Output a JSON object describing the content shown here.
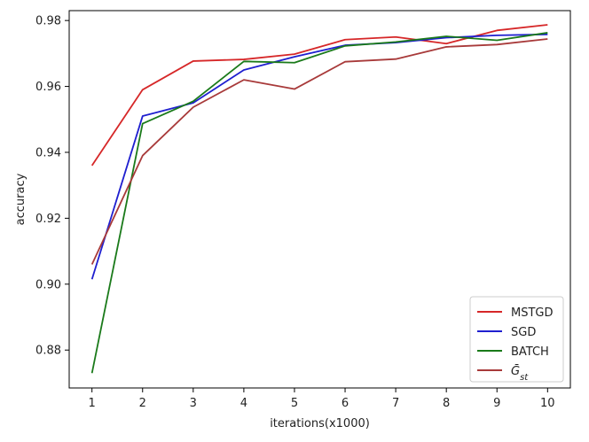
{
  "chart_data": {
    "type": "line",
    "xlabel": "iterations(x1000)",
    "ylabel": "accuracy",
    "x": [
      1,
      2,
      3,
      4,
      5,
      6,
      7,
      8,
      9,
      10
    ],
    "xticks": [
      "1",
      "2",
      "3",
      "4",
      "5",
      "6",
      "7",
      "8",
      "9",
      "10"
    ],
    "yticks": [
      "0.88",
      "0.90",
      "0.92",
      "0.94",
      "0.96",
      "0.98"
    ],
    "ytick_values": [
      0.88,
      0.9,
      0.92,
      0.94,
      0.96,
      0.98
    ],
    "xlim": [
      0.55,
      10.45
    ],
    "ylim": [
      0.8685,
      0.983
    ],
    "grid": false,
    "legend_position": "lower-right",
    "series": [
      {
        "name": "MSTGD",
        "color": "#d62728",
        "values": [
          0.936,
          0.959,
          0.9677,
          0.9682,
          0.9698,
          0.9742,
          0.975,
          0.973,
          0.977,
          0.9787
        ]
      },
      {
        "name": "SGD",
        "color": "#1f1fcf",
        "values": [
          0.9015,
          0.951,
          0.955,
          0.965,
          0.969,
          0.9725,
          0.9733,
          0.9748,
          0.9755,
          0.9758
        ]
      },
      {
        "name": "BATCH",
        "color": "#1a7a1a",
        "values": [
          0.873,
          0.9487,
          0.9555,
          0.9676,
          0.9672,
          0.9723,
          0.9735,
          0.9752,
          0.974,
          0.9763
        ]
      },
      {
        "name": "Ḡ_st",
        "color": "#a83a3a",
        "values": [
          0.906,
          0.939,
          0.9537,
          0.962,
          0.9592,
          0.9675,
          0.9683,
          0.972,
          0.9727,
          0.9744
        ]
      }
    ]
  }
}
